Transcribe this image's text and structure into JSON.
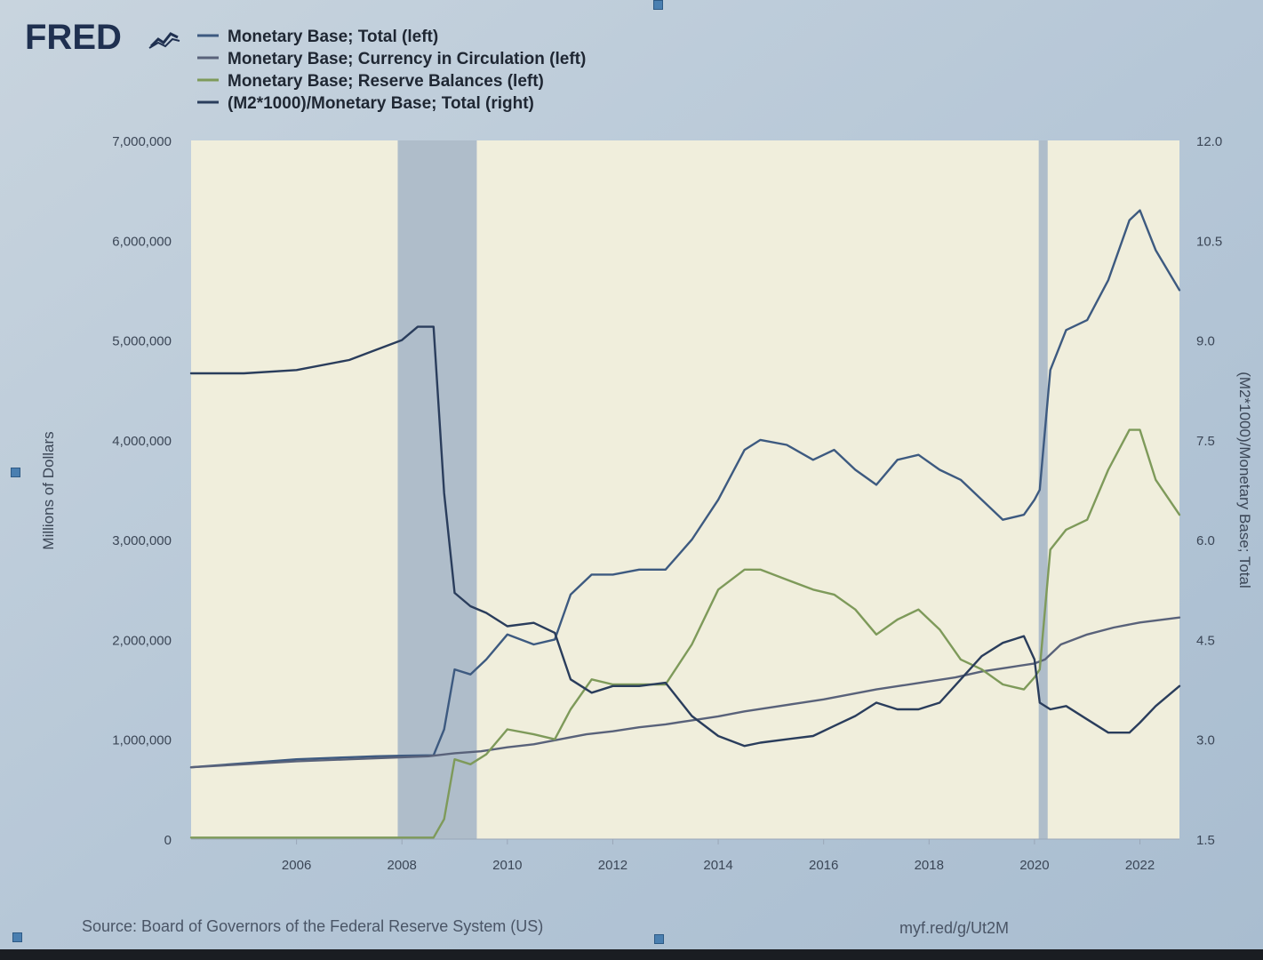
{
  "header": {
    "logo": "FRED",
    "logo_icon": "line-chart-icon"
  },
  "chart_data": {
    "type": "line",
    "title": "",
    "ylabel": "Millions of Dollars",
    "ylabel_right": "(M2*1000)/Monetary Base; Total",
    "ylim": [
      0,
      7000000
    ],
    "ylim_right": [
      1.5,
      12.0
    ],
    "xlim": [
      2004.0,
      2022.75
    ],
    "x_ticks": [
      2006,
      2008,
      2010,
      2012,
      2014,
      2016,
      2018,
      2020,
      2022
    ],
    "y_ticks_left": [
      {
        "value": 0,
        "label": "0"
      },
      {
        "value": 1000000,
        "label": "1,000,000"
      },
      {
        "value": 2000000,
        "label": "2,000,000"
      },
      {
        "value": 3000000,
        "label": "3,000,000"
      },
      {
        "value": 4000000,
        "label": "4,000,000"
      },
      {
        "value": 5000000,
        "label": "5,000,000"
      },
      {
        "value": 6000000,
        "label": "6,000,000"
      },
      {
        "value": 7000000,
        "label": "7,000,000"
      }
    ],
    "y_ticks_right": [
      {
        "value": 1.5,
        "label": "1.5"
      },
      {
        "value": 3.0,
        "label": "3.0"
      },
      {
        "value": 4.5,
        "label": "4.5"
      },
      {
        "value": 6.0,
        "label": "6.0"
      },
      {
        "value": 7.5,
        "label": "7.5"
      },
      {
        "value": 9.0,
        "label": "9.0"
      },
      {
        "value": 10.5,
        "label": "10.5"
      },
      {
        "value": 12.0,
        "label": "12.0"
      }
    ],
    "recessions": [
      [
        2007.92,
        2009.42
      ],
      [
        2020.08,
        2020.25
      ]
    ],
    "legend_position": "top-left",
    "grid": false,
    "series": [
      {
        "name": "Monetary Base; Total (left)",
        "axis": "left",
        "color": "#3d5a80",
        "x": [
          2004.0,
          2005.0,
          2006.0,
          2007.0,
          2007.5,
          2008.0,
          2008.6,
          2008.8,
          2009.0,
          2009.3,
          2009.6,
          2010.0,
          2010.5,
          2010.9,
          2011.2,
          2011.6,
          2012.0,
          2012.5,
          2013.0,
          2013.5,
          2014.0,
          2014.5,
          2014.8,
          2015.3,
          2015.8,
          2016.2,
          2016.6,
          2017.0,
          2017.4,
          2017.8,
          2018.2,
          2018.6,
          2019.0,
          2019.4,
          2019.8,
          2020.0,
          2020.1,
          2020.3,
          2020.6,
          2021.0,
          2021.4,
          2021.8,
          2022.0,
          2022.3,
          2022.75
        ],
        "y": [
          720000,
          760000,
          800000,
          820000,
          830000,
          835000,
          840000,
          1100000,
          1700000,
          1650000,
          1800000,
          2050000,
          1950000,
          2000000,
          2450000,
          2650000,
          2650000,
          2700000,
          2700000,
          3000000,
          3400000,
          3900000,
          4000000,
          3950000,
          3800000,
          3900000,
          3700000,
          3550000,
          3800000,
          3850000,
          3700000,
          3600000,
          3400000,
          3200000,
          3250000,
          3400000,
          3500000,
          4700000,
          5100000,
          5200000,
          5600000,
          6200000,
          6300000,
          5900000,
          5500000
        ]
      },
      {
        "name": "Monetary Base; Currency in Circulation (left)",
        "axis": "left",
        "color": "#59627a",
        "x": [
          2004.0,
          2005.0,
          2006.0,
          2007.0,
          2008.0,
          2008.5,
          2009.0,
          2009.5,
          2010.0,
          2010.5,
          2011.0,
          2011.5,
          2012.0,
          2012.5,
          2013.0,
          2013.5,
          2014.0,
          2014.5,
          2015.0,
          2015.5,
          2016.0,
          2016.5,
          2017.0,
          2017.5,
          2018.0,
          2018.5,
          2019.0,
          2019.5,
          2020.0,
          2020.2,
          2020.5,
          2021.0,
          2021.5,
          2022.0,
          2022.75
        ],
        "y": [
          720000,
          750000,
          780000,
          800000,
          820000,
          830000,
          860000,
          880000,
          920000,
          950000,
          1000000,
          1050000,
          1080000,
          1120000,
          1150000,
          1190000,
          1230000,
          1280000,
          1320000,
          1360000,
          1400000,
          1450000,
          1500000,
          1540000,
          1580000,
          1620000,
          1680000,
          1720000,
          1760000,
          1800000,
          1950000,
          2050000,
          2120000,
          2170000,
          2220000
        ]
      },
      {
        "name": "Monetary Base; Reserve Balances (left)",
        "axis": "left",
        "color": "#7e9a5a",
        "x": [
          2004.0,
          2007.0,
          2008.6,
          2008.8,
          2009.0,
          2009.3,
          2009.6,
          2010.0,
          2010.5,
          2010.9,
          2011.2,
          2011.6,
          2012.0,
          2012.5,
          2013.0,
          2013.5,
          2014.0,
          2014.5,
          2014.8,
          2015.3,
          2015.8,
          2016.2,
          2016.6,
          2017.0,
          2017.4,
          2017.8,
          2018.2,
          2018.6,
          2019.0,
          2019.4,
          2019.8,
          2020.0,
          2020.1,
          2020.3,
          2020.6,
          2021.0,
          2021.4,
          2021.8,
          2022.0,
          2022.3,
          2022.75
        ],
        "y": [
          15000,
          15000,
          15000,
          200000,
          800000,
          750000,
          850000,
          1100000,
          1050000,
          1000000,
          1300000,
          1600000,
          1550000,
          1550000,
          1550000,
          1950000,
          2500000,
          2700000,
          2700000,
          2600000,
          2500000,
          2450000,
          2300000,
          2050000,
          2200000,
          2300000,
          2100000,
          1800000,
          1700000,
          1550000,
          1500000,
          1620000,
          1700000,
          2900000,
          3100000,
          3200000,
          3700000,
          4100000,
          4100000,
          3600000,
          3250000
        ]
      },
      {
        "name": "(M2*1000)/Monetary Base; Total (right)",
        "axis": "right",
        "color": "#2a3d5c",
        "x": [
          2004.0,
          2005.0,
          2006.0,
          2007.0,
          2007.5,
          2008.0,
          2008.3,
          2008.6,
          2008.8,
          2009.0,
          2009.3,
          2009.6,
          2010.0,
          2010.5,
          2010.9,
          2011.2,
          2011.6,
          2012.0,
          2012.5,
          2013.0,
          2013.5,
          2014.0,
          2014.5,
          2014.8,
          2015.3,
          2015.8,
          2016.2,
          2016.6,
          2017.0,
          2017.4,
          2017.8,
          2018.2,
          2018.6,
          2019.0,
          2019.4,
          2019.8,
          2020.0,
          2020.1,
          2020.3,
          2020.6,
          2021.0,
          2021.4,
          2021.8,
          2022.0,
          2022.3,
          2022.75
        ],
        "y": [
          8.5,
          8.5,
          8.55,
          8.7,
          8.85,
          9.0,
          9.2,
          9.2,
          6.7,
          5.2,
          5.0,
          4.9,
          4.7,
          4.75,
          4.6,
          3.9,
          3.7,
          3.8,
          3.8,
          3.85,
          3.35,
          3.05,
          2.9,
          2.95,
          3.0,
          3.05,
          3.2,
          3.35,
          3.55,
          3.45,
          3.45,
          3.55,
          3.9,
          4.25,
          4.45,
          4.55,
          4.2,
          3.55,
          3.45,
          3.5,
          3.3,
          3.1,
          3.1,
          3.25,
          3.5,
          3.8
        ]
      }
    ],
    "source": "Source: Board of Governors of the Federal Reserve System (US)",
    "url": "myf.red/g/Ut2M"
  }
}
